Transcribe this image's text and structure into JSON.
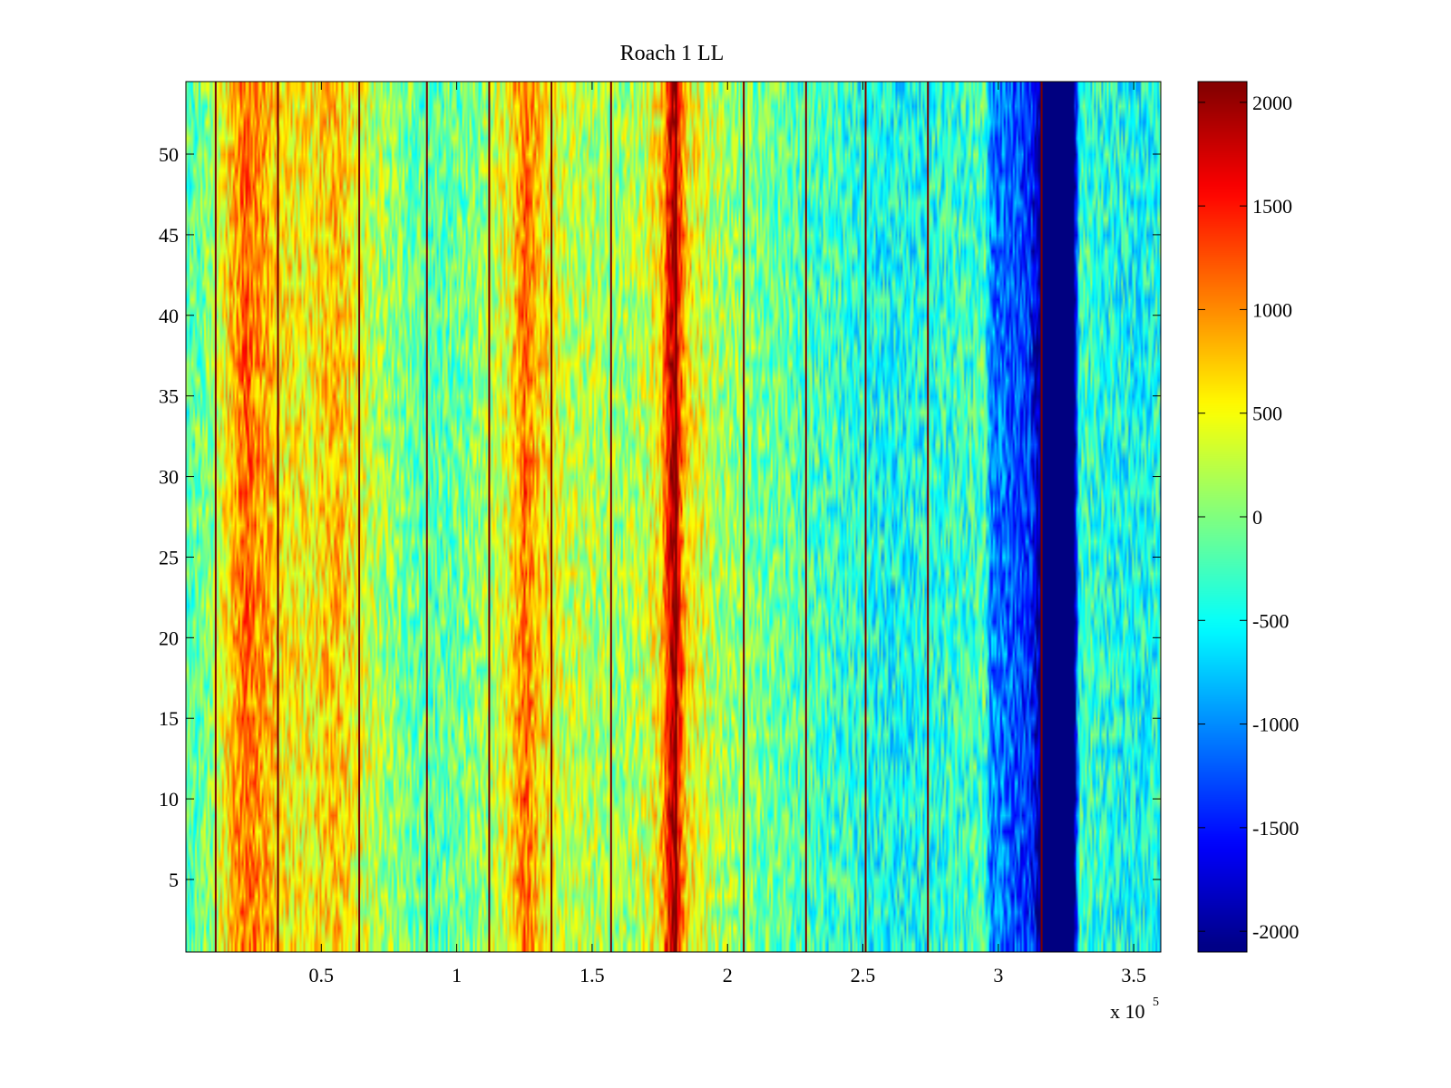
{
  "chart_data": {
    "type": "heatmap",
    "title": "Roach 1 LL",
    "xlabel": "",
    "ylabel": "",
    "xlim": [
      0,
      360000
    ],
    "ylim": [
      0.5,
      54.5
    ],
    "x_ticks": [
      {
        "value": 50000,
        "label": "0.5"
      },
      {
        "value": 100000,
        "label": "1"
      },
      {
        "value": 150000,
        "label": "1.5"
      },
      {
        "value": 200000,
        "label": "2"
      },
      {
        "value": 250000,
        "label": "2.5"
      },
      {
        "value": 300000,
        "label": "3"
      },
      {
        "value": 350000,
        "label": "3.5"
      }
    ],
    "x_exponent": {
      "base": "x 10",
      "power": "5"
    },
    "y_ticks": [
      {
        "value": 5,
        "label": "5"
      },
      {
        "value": 10,
        "label": "10"
      },
      {
        "value": 15,
        "label": "15"
      },
      {
        "value": 20,
        "label": "20"
      },
      {
        "value": 25,
        "label": "25"
      },
      {
        "value": 30,
        "label": "30"
      },
      {
        "value": 35,
        "label": "35"
      },
      {
        "value": 40,
        "label": "40"
      },
      {
        "value": 45,
        "label": "45"
      },
      {
        "value": 50,
        "label": "50"
      }
    ],
    "colormap": "jet",
    "colorbar": {
      "range": [
        -2100,
        2100
      ],
      "ticks": [
        {
          "value": 2000,
          "label": "2000"
        },
        {
          "value": 1500,
          "label": "1500"
        },
        {
          "value": 1000,
          "label": "1000"
        },
        {
          "value": 500,
          "label": "500"
        },
        {
          "value": 0,
          "label": "0"
        },
        {
          "value": -500,
          "label": "-500"
        },
        {
          "value": -1000,
          "label": "-1000"
        },
        {
          "value": -1500,
          "label": "-1500"
        },
        {
          "value": -2000,
          "label": "-2000"
        }
      ]
    },
    "rows": 54,
    "column_profile": [
      {
        "x": 0,
        "value": -200
      },
      {
        "x": 5000,
        "value": -100
      },
      {
        "x": 10000,
        "value": 100
      },
      {
        "x": 15000,
        "value": 600
      },
      {
        "x": 22000,
        "value": 1200
      },
      {
        "x": 28000,
        "value": 900
      },
      {
        "x": 35000,
        "value": 600
      },
      {
        "x": 45000,
        "value": 500
      },
      {
        "x": 55000,
        "value": 800
      },
      {
        "x": 62000,
        "value": 500
      },
      {
        "x": 70000,
        "value": 200
      },
      {
        "x": 80000,
        "value": 0
      },
      {
        "x": 90000,
        "value": -200
      },
      {
        "x": 100000,
        "value": -100
      },
      {
        "x": 110000,
        "value": 100
      },
      {
        "x": 120000,
        "value": 500
      },
      {
        "x": 125000,
        "value": 1200
      },
      {
        "x": 130000,
        "value": 700
      },
      {
        "x": 140000,
        "value": 300
      },
      {
        "x": 150000,
        "value": 200
      },
      {
        "x": 160000,
        "value": 100
      },
      {
        "x": 170000,
        "value": 300
      },
      {
        "x": 175000,
        "value": 600
      },
      {
        "x": 180000,
        "value": 2000
      },
      {
        "x": 185000,
        "value": 600
      },
      {
        "x": 195000,
        "value": 200
      },
      {
        "x": 210000,
        "value": 0
      },
      {
        "x": 225000,
        "value": -200
      },
      {
        "x": 240000,
        "value": -300
      },
      {
        "x": 250000,
        "value": -400
      },
      {
        "x": 260000,
        "value": -500
      },
      {
        "x": 275000,
        "value": -400
      },
      {
        "x": 290000,
        "value": -300
      },
      {
        "x": 295000,
        "value": -200
      },
      {
        "x": 297000,
        "value": -1000
      },
      {
        "x": 305000,
        "value": -1200
      },
      {
        "x": 312000,
        "value": -1400
      },
      {
        "x": 316000,
        "value": -2100
      },
      {
        "x": 328000,
        "value": -2100
      },
      {
        "x": 330000,
        "value": -300
      },
      {
        "x": 340000,
        "value": -400
      },
      {
        "x": 350000,
        "value": -500
      },
      {
        "x": 360000,
        "value": -400
      }
    ],
    "vertical_lines_x": [
      11000,
      34000,
      64000,
      89000,
      112000,
      135000,
      157000,
      181000,
      206000,
      229000,
      251000,
      274000,
      316000
    ]
  }
}
